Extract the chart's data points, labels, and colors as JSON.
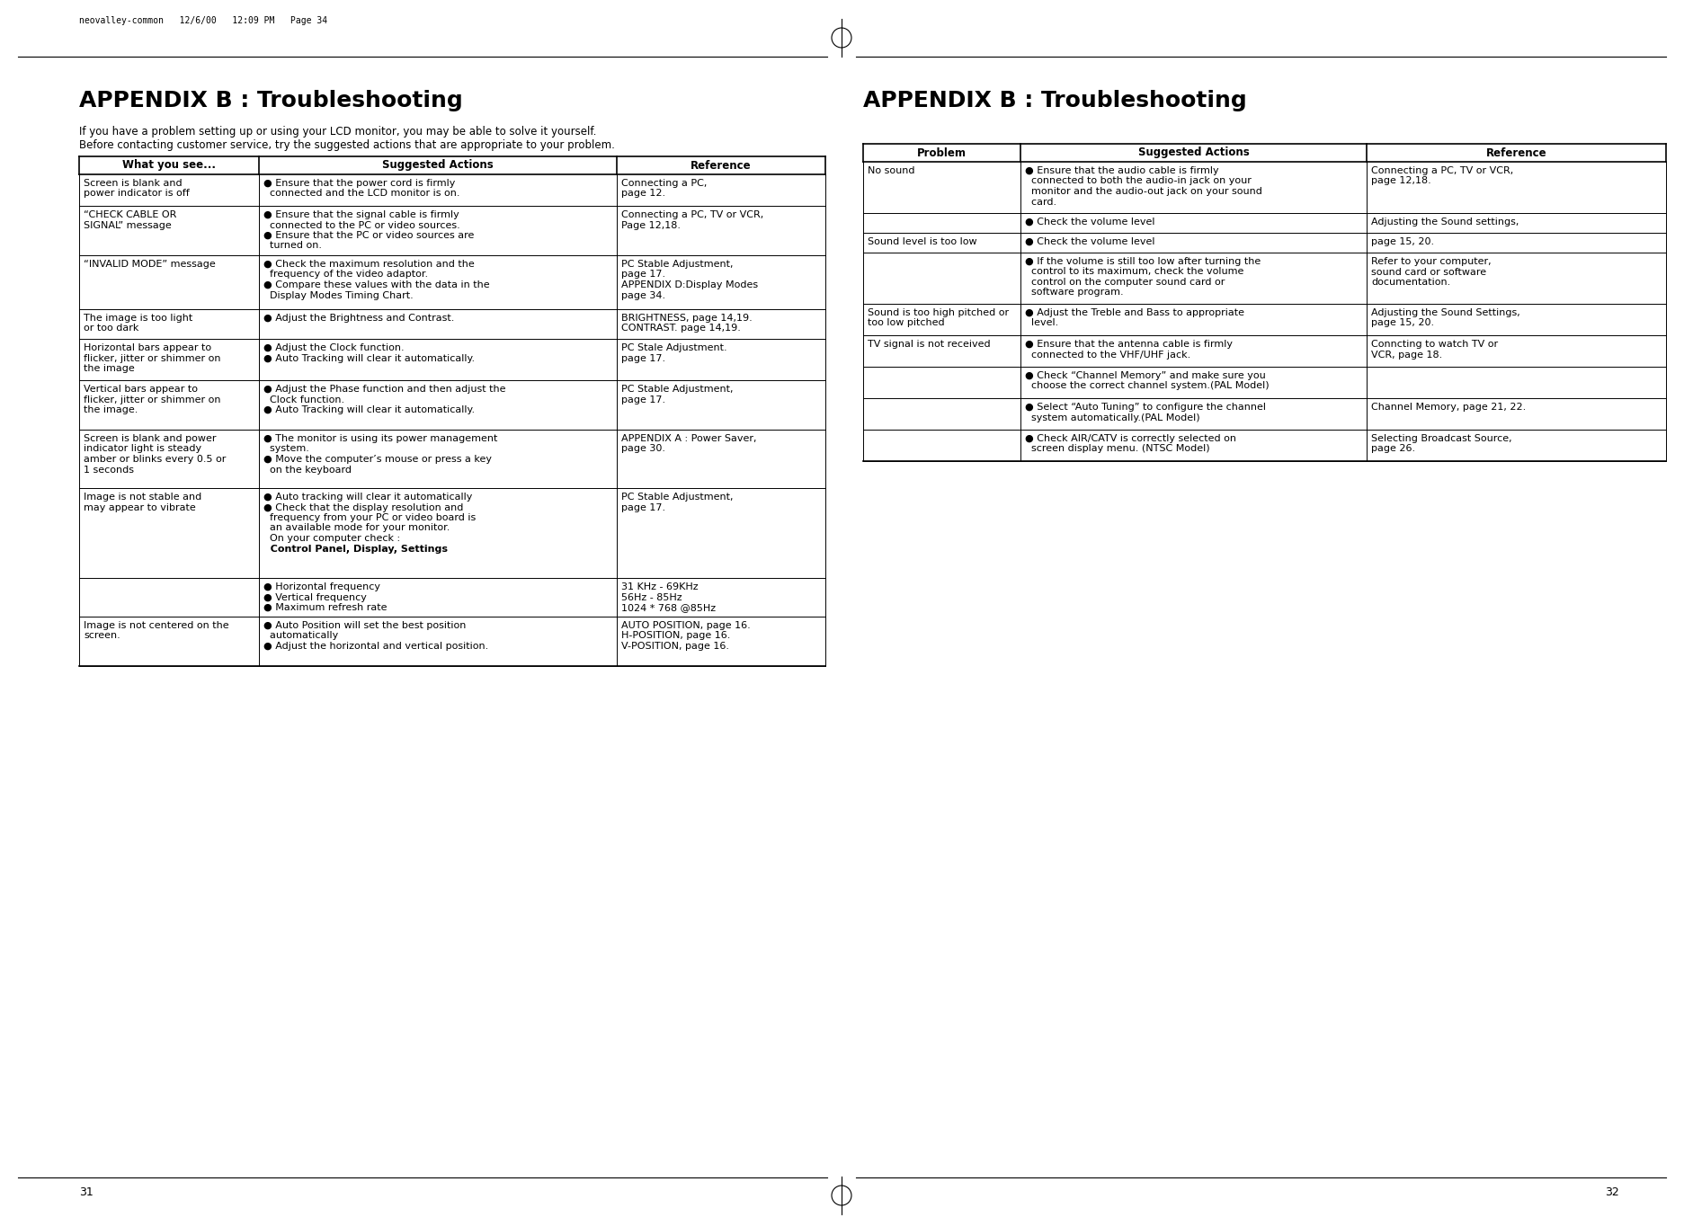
{
  "bg_color": "#ffffff",
  "page_header": "neovalley-common   12/6/00   12:09 PM   Page 34",
  "page_numbers": [
    "31",
    "32"
  ],
  "left_title": "APPENDIX B : Troubleshooting",
  "left_subtitle1": "If you have a problem setting up or using your LCD monitor, you may be able to solve it yourself.",
  "left_subtitle2": "Before contacting customer service, try the suggested actions that are appropriate to your problem.",
  "left_col_headers": [
    "What you see...",
    "Suggested Actions",
    "Reference"
  ],
  "right_title": "APPENDIX B : Troubleshooting",
  "right_col_headers": [
    "Problem",
    "Suggested Actions",
    "Reference"
  ]
}
